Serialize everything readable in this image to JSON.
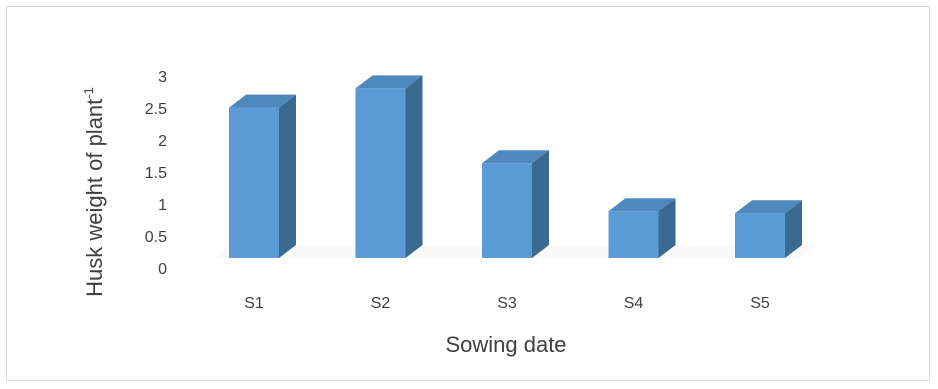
{
  "chart_data": {
    "type": "bar",
    "style": "3d-column",
    "categories": [
      "S1",
      "S2",
      "S3",
      "S4",
      "S5"
    ],
    "values": [
      2.35,
      2.65,
      1.48,
      0.73,
      0.7
    ],
    "xlabel": "Sowing date",
    "ylabel": "Husk weight of plant",
    "ylabel_superscript": "-1",
    "ylim": [
      0,
      3
    ],
    "yticks": [
      "0",
      "0.5",
      "1",
      "1.5",
      "2",
      "2.5",
      "3"
    ],
    "grid": false,
    "legend": "none",
    "colors": {
      "front": "#5b9bd5",
      "side": "#3a6a91",
      "top": "#4f88bd",
      "floor": "#eeeeee"
    }
  }
}
